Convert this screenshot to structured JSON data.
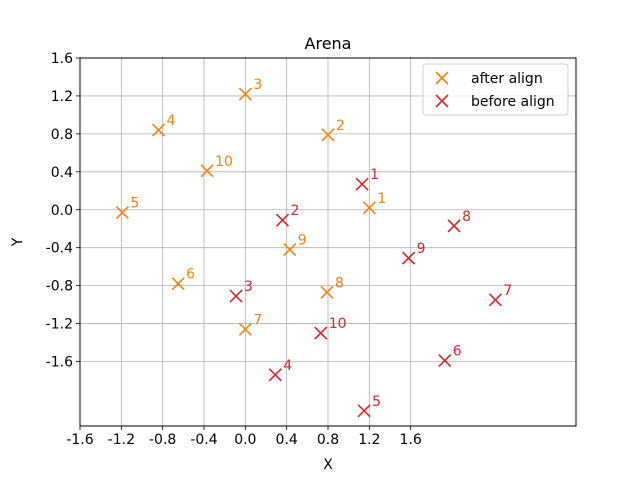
{
  "chart_data": {
    "type": "scatter",
    "title": "Arena",
    "xlabel": "X",
    "ylabel": "Y",
    "xlim": [
      -1.6,
      3.2
    ],
    "ylim": [
      -2.28,
      1.6
    ],
    "xticks": [
      "-1.6",
      "-1.2",
      "-0.8",
      "-0.4",
      "0.0",
      "0.4",
      "0.8",
      "1.2",
      "1.6"
    ],
    "xtick_values": [
      -1.6,
      -1.2,
      -0.8,
      -0.4,
      0.0,
      0.4,
      0.8,
      1.2,
      1.6
    ],
    "yticks": [
      "1.6",
      "1.2",
      "0.8",
      "0.4",
      "0.0",
      "-0.4",
      "-0.8",
      "-1.2",
      "-1.6"
    ],
    "ytick_values": [
      1.6,
      1.2,
      0.8,
      0.4,
      0.0,
      -0.4,
      -0.8,
      -1.2,
      -1.6
    ],
    "grid": true,
    "legend_position": "top-right",
    "series": [
      {
        "name": "after align",
        "color": "#ff7f0e",
        "marker": "x",
        "points": [
          {
            "label": "1",
            "x": 1.2,
            "y": 0.02
          },
          {
            "label": "2",
            "x": 0.8,
            "y": 0.79
          },
          {
            "label": "3",
            "x": 0.0,
            "y": 1.22
          },
          {
            "label": "4",
            "x": -0.84,
            "y": 0.84
          },
          {
            "label": "5",
            "x": -1.19,
            "y": -0.03
          },
          {
            "label": "6",
            "x": -0.65,
            "y": -0.78
          },
          {
            "label": "7",
            "x": 0.0,
            "y": -1.26
          },
          {
            "label": "8",
            "x": 0.79,
            "y": -0.87
          },
          {
            "label": "9",
            "x": 0.43,
            "y": -0.42
          },
          {
            "label": "10",
            "x": -0.37,
            "y": 0.41
          }
        ]
      },
      {
        "name": "before align",
        "color": "#d62728",
        "marker": "x",
        "points": [
          {
            "label": "1",
            "x": 1.13,
            "y": 0.27
          },
          {
            "label": "2",
            "x": 0.36,
            "y": -0.11
          },
          {
            "label": "3",
            "x": -0.09,
            "y": -0.91
          },
          {
            "label": "4",
            "x": 0.29,
            "y": -1.74
          },
          {
            "label": "5",
            "x": 1.15,
            "y": -2.12
          },
          {
            "label": "6",
            "x": 1.93,
            "y": -1.59
          },
          {
            "label": "7",
            "x": 2.42,
            "y": -0.95
          },
          {
            "label": "8",
            "x": 2.02,
            "y": -0.17
          },
          {
            "label": "9",
            "x": 1.58,
            "y": -0.51
          },
          {
            "label": "10",
            "x": 0.73,
            "y": -1.3
          }
        ]
      }
    ]
  }
}
